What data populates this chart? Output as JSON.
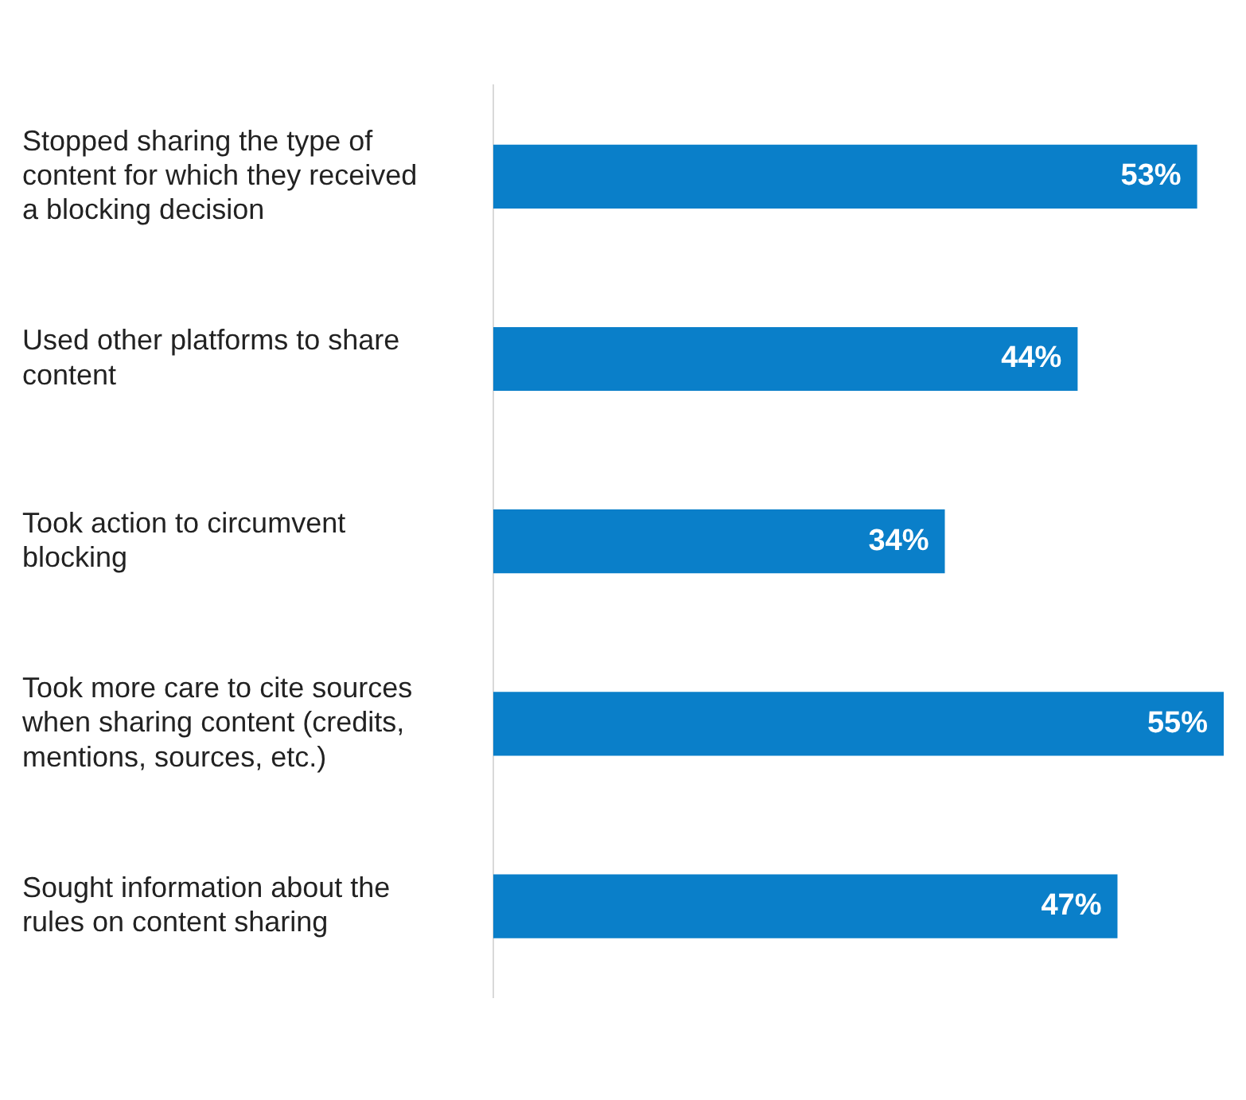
{
  "chart_data": {
    "type": "bar",
    "orientation": "horizontal",
    "data_labels": true,
    "categories": [
      "Stopped sharing the type of content for which they received a blocking decision",
      "Used other platforms to share content",
      "Took action to circumvent blocking",
      "Took more care to cite sources when sharing content (credits, mentions, sources, etc.)",
      "Sought information about the rules on content sharing"
    ],
    "series": [
      {
        "color": "#0a7fc9",
        "values": [
          53,
          44,
          34,
          55,
          47
        ],
        "value_labels": [
          "53%",
          "44%",
          "34%",
          "55%",
          "47%"
        ]
      }
    ]
  }
}
